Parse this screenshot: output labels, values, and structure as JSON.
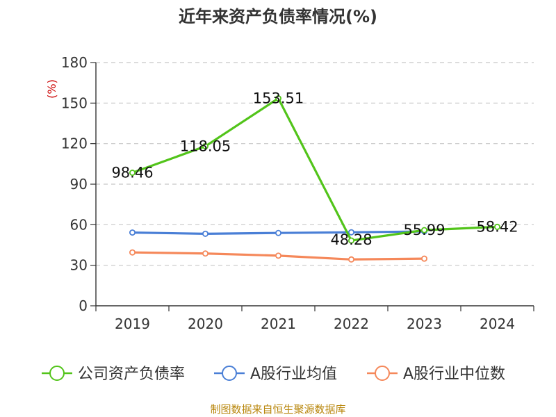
{
  "source_text": "制图数据来自恒生聚源数据库",
  "chart_data": {
    "type": "line",
    "title": "近年来资产负债率情况(%)",
    "ylabel": "(%)",
    "xlabel": "",
    "categories": [
      "2019",
      "2020",
      "2021",
      "2022",
      "2023",
      "2024"
    ],
    "ylim": [
      0,
      180
    ],
    "yticks": [
      0,
      30,
      60,
      90,
      120,
      150,
      180
    ],
    "grid": true,
    "legend_position": "bottom",
    "series": [
      {
        "name": "公司资产负债率",
        "color": "#52c41a",
        "values": [
          98.46,
          118.05,
          153.51,
          48.28,
          55.99,
          58.42
        ],
        "labels": [
          "98.46",
          "118.05",
          "153.51",
          "48.28",
          "55.99",
          "58.42"
        ]
      },
      {
        "name": "A股行业均值",
        "color": "#4a7fd6",
        "values": [
          54.2,
          53.3,
          53.9,
          54.4,
          55.0,
          null
        ]
      },
      {
        "name": "A股行业中位数",
        "color": "#f5885a",
        "values": [
          39.5,
          38.7,
          37.1,
          34.3,
          34.9,
          null
        ]
      }
    ]
  }
}
